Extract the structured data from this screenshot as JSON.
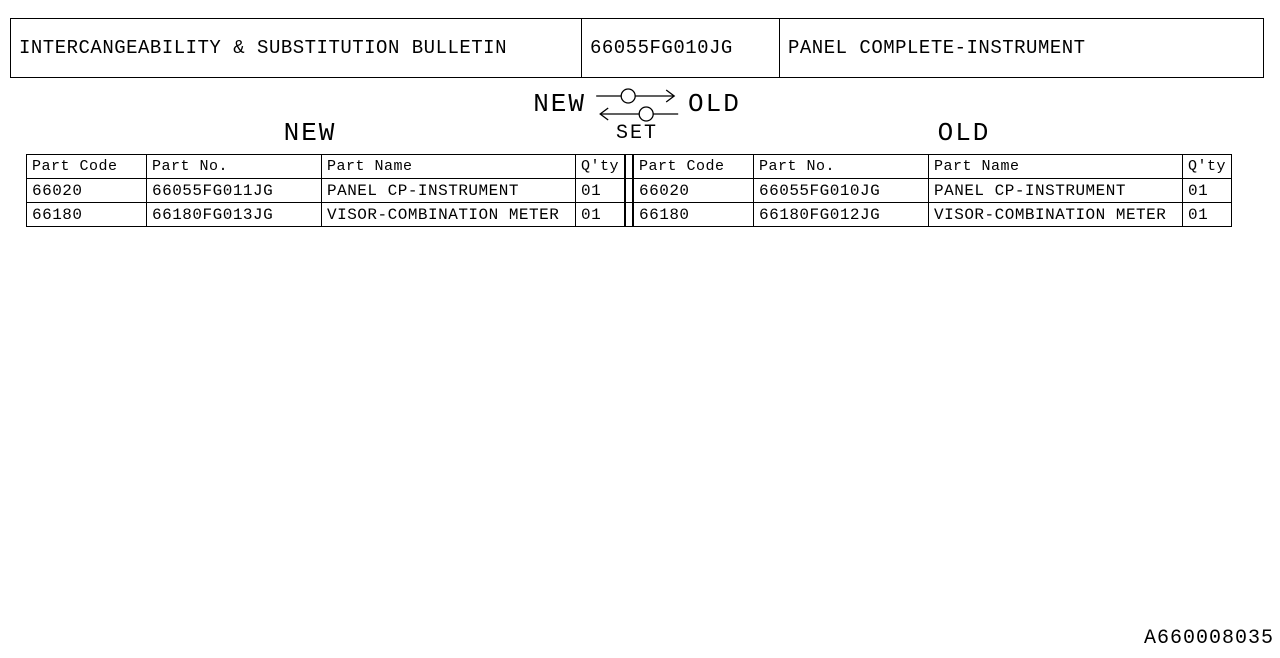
{
  "header": {
    "title": "INTERCANGEABILITY & SUBSTITUTION BULLETIN",
    "part_no": "66055FG010JG",
    "part_name": "PANEL COMPLETE-INSTRUMENT",
    "col_widths": [
      "571px",
      "198px",
      "auto"
    ]
  },
  "diagram": {
    "new_label": "NEW",
    "old_label": "OLD",
    "center_new": "NEW",
    "center_old": "OLD",
    "set_label": "SET"
  },
  "columns": {
    "part_code": "Part Code",
    "part_no": "Part No.",
    "part_name": "Part Name",
    "qty": "Q'ty"
  },
  "new_rows": [
    {
      "code": "66020",
      "no": "66055FG011JG",
      "name": "PANEL CP-INSTRUMENT",
      "qty": "01"
    },
    {
      "code": "66180",
      "no": "66180FG013JG",
      "name": "VISOR-COMBINATION METER",
      "qty": "01"
    }
  ],
  "old_rows": [
    {
      "code": "66020",
      "no": "66055FG010JG",
      "name": "PANEL CP-INSTRUMENT",
      "qty": "01"
    },
    {
      "code": "66180",
      "no": "66180FG012JG",
      "name": "VISOR-COMBINATION METER",
      "qty": "01"
    }
  ],
  "footer": "A660008035",
  "style": {
    "stroke": "#000",
    "stroke_width": 1.3
  }
}
